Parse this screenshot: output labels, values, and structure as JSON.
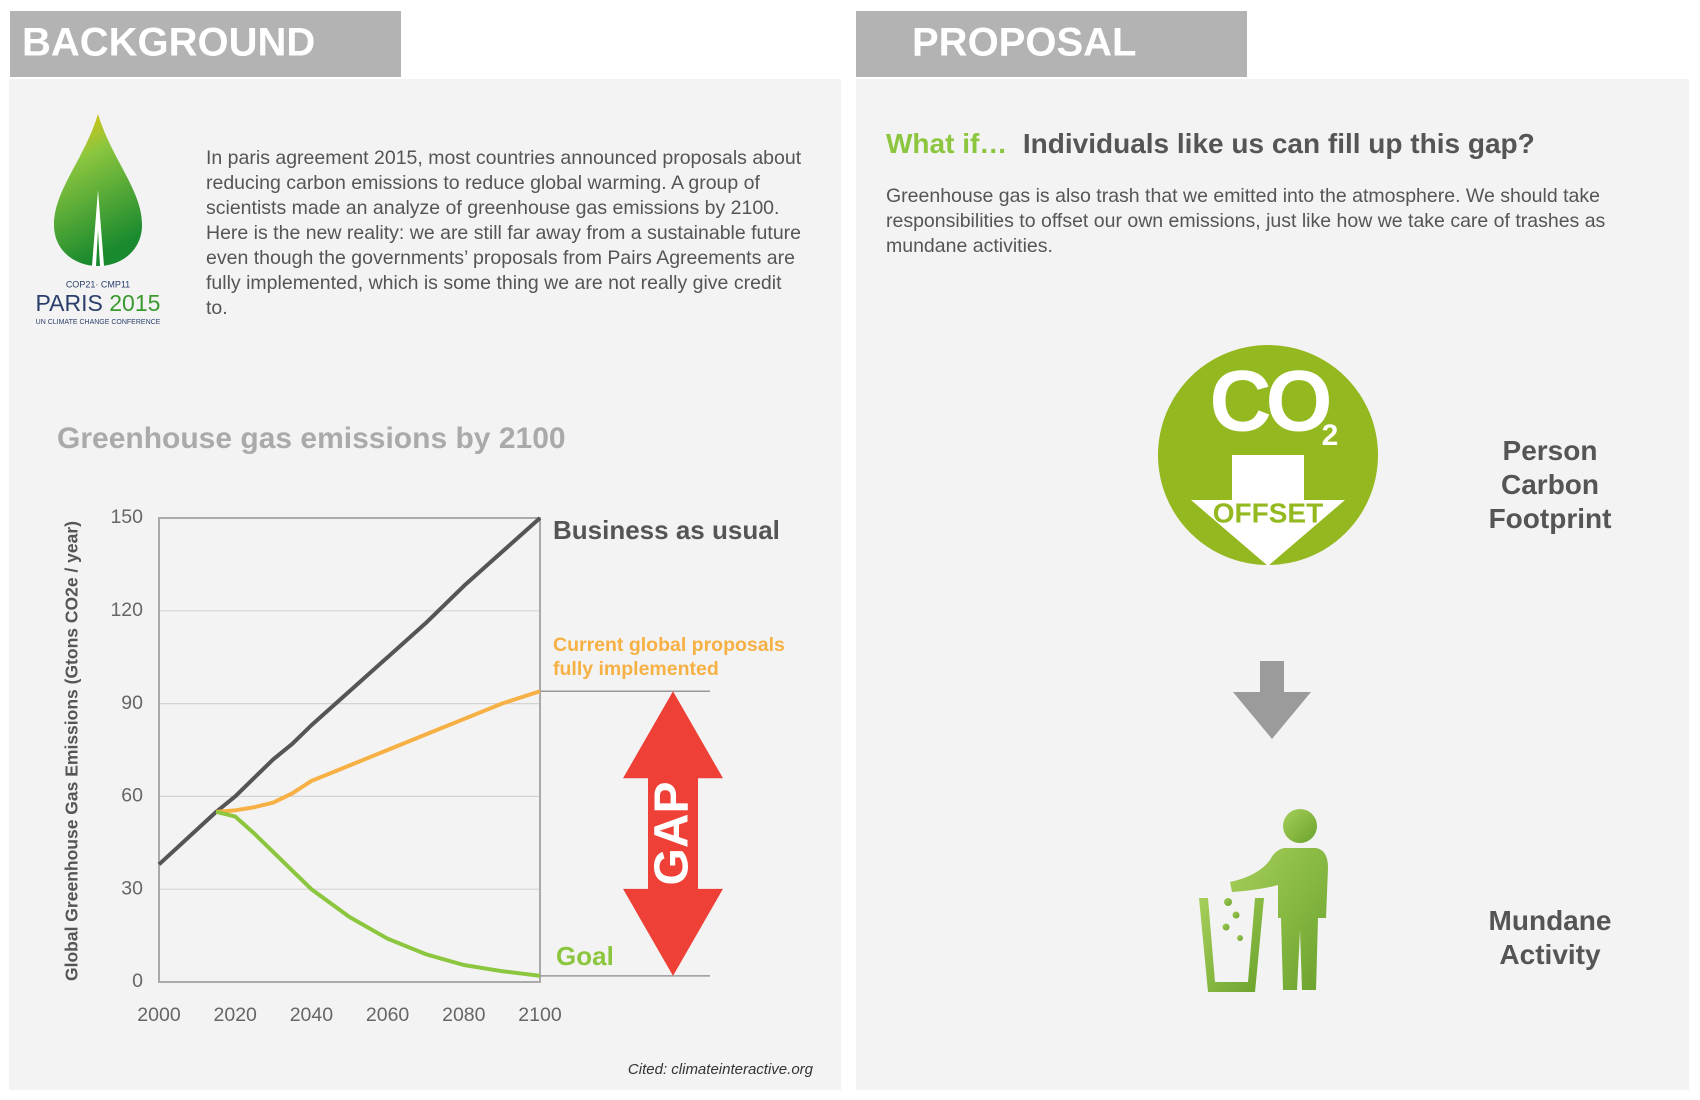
{
  "header_left": "BACKGROUND",
  "header_right": "PROPOSAL",
  "logo": {
    "top": "COP21· CMP11",
    "city": "PARIS",
    "year": "2015",
    "bottom": "UN CLIMATE CHANGE CONFERENCE"
  },
  "background_text": "In paris agreement 2015, most countries announced proposals about reducing carbon emissions to reduce global warming. A group of scientists made an analyze of greenhouse gas emissions by 2100. Here is the new reality: we are still far away from a sustainable future even though the governments’ proposals from Pairs Agreements are fully implemented, which is some thing we are not really give credit to.",
  "chart_data": {
    "type": "line",
    "title": "Greenhouse gas emissions by 2100",
    "y_label": "Global Greenhouse Gas Emissions (Gtons CO2e / year)",
    "x": [
      2000,
      2015,
      2020,
      2025,
      2030,
      2035,
      2040,
      2050,
      2060,
      2070,
      2080,
      2090,
      2100
    ],
    "series": [
      {
        "name": "Business as usual",
        "color": "#555555",
        "values": [
          38,
          55,
          60,
          66,
          72,
          77,
          83,
          94,
          105,
          116,
          128,
          139,
          150
        ]
      },
      {
        "name": "Current global proposals fully implemented",
        "color": "#f7b044",
        "values": [
          null,
          55,
          55.5,
          56.5,
          58,
          61,
          65,
          70,
          75,
          80,
          85,
          90,
          94
        ]
      },
      {
        "name": "Goal",
        "color": "#8cc63f",
        "values": [
          null,
          55,
          53.5,
          48,
          42,
          36,
          30,
          21,
          14,
          9,
          5.5,
          3.5,
          2
        ]
      }
    ],
    "xlim": [
      2000,
      2100
    ],
    "xticks": [
      2000,
      2020,
      2040,
      2060,
      2080,
      2100
    ],
    "ylim": [
      0,
      150
    ],
    "yticks": [
      0,
      30,
      60,
      90,
      120,
      150
    ],
    "grid": true,
    "annotation": "GAP",
    "source": "Cited: climateinteractive.org"
  },
  "proposal": {
    "lead": "What if…",
    "question": "Individuals like us can fill up this gap?",
    "text": "Greenhouse gas is also trash that we emitted into the atmosphere. We should take responsibilities to offset our own emissions, just like how we take care of trashes as mundane activities.",
    "icon": {
      "co": "CO",
      "sub": "2",
      "offset": "OFFSET"
    },
    "steps": [
      "Person Carbon Footprint",
      "Mundane Activity"
    ]
  }
}
